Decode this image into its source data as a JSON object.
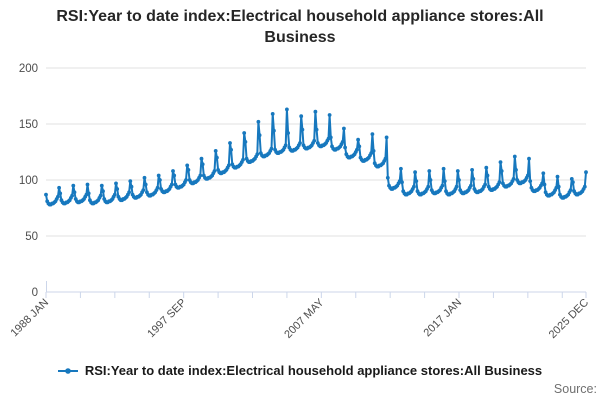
{
  "title": "RSI:Year to date index:Electrical household appliance stores:All Business",
  "legend": {
    "label": "RSI:Year to date index:Electrical household appliance stores:All Business"
  },
  "source_label": "Source:",
  "colors": {
    "line": "#1778be",
    "grid": "#e2e2e2",
    "axis": "#ccd6ea",
    "tick_text": "#4d4d4d",
    "title_text": "#262626",
    "source_text": "#707070"
  },
  "chart_data": {
    "type": "line",
    "title": "RSI:Year to date index:Electrical household appliance stores:All Business",
    "x_unit": "month",
    "x_range": [
      "1988 JAN",
      "2025 DEC"
    ],
    "ylim": [
      0,
      200
    ],
    "yticks": [
      0,
      50,
      100,
      150,
      200
    ],
    "grid": true,
    "legend_position": "bottom",
    "marker": "circle",
    "x_tick_labels": [
      {
        "month": 0,
        "label": "1988 JAN"
      },
      {
        "month": 116,
        "label": "1997 SEP"
      },
      {
        "month": 232,
        "label": "2007 MAY"
      },
      {
        "month": 348,
        "label": "2017 JAN"
      },
      {
        "month": 455,
        "label": "2025 DEC"
      }
    ],
    "minor_tick_months": [
      0,
      29,
      58,
      87,
      116,
      145,
      174,
      203,
      232,
      261,
      290,
      319,
      348,
      377,
      406,
      435,
      455
    ],
    "total_months": 456,
    "series": [
      {
        "name": "RSI:Year to date index:Electrical household appliance stores:All Business",
        "color": "#1778be",
        "years": [
          {
            "year": 1988,
            "values": [
              87,
              81,
              79,
              78,
              78,
              79,
              79,
              80,
              81,
              83,
              85,
              93
            ]
          },
          {
            "year": 1989,
            "values": [
              88,
              82,
              80,
              79,
              79,
              80,
              80,
              81,
              82,
              84,
              86,
              95
            ]
          },
          {
            "year": 1990,
            "values": [
              89,
              83,
              81,
              80,
              80,
              81,
              81,
              82,
              83,
              85,
              87,
              96
            ]
          },
          {
            "year": 1991,
            "values": [
              88,
              82,
              80,
              79,
              79,
              80,
              80,
              81,
              82,
              84,
              86,
              95
            ]
          },
          {
            "year": 1992,
            "values": [
              90,
              83,
              81,
              80,
              80,
              81,
              81,
              82,
              83,
              85,
              87,
              97
            ]
          },
          {
            "year": 1993,
            "values": [
              92,
              85,
              83,
              82,
              82,
              83,
              83,
              84,
              85,
              87,
              89,
              99
            ]
          },
          {
            "year": 1994,
            "values": [
              94,
              87,
              85,
              84,
              84,
              85,
              85,
              86,
              87,
              89,
              91,
              102
            ]
          },
          {
            "year": 1995,
            "values": [
              96,
              89,
              87,
              86,
              86,
              87,
              87,
              88,
              89,
              91,
              93,
              104
            ]
          },
          {
            "year": 1996,
            "values": [
              100,
              92,
              90,
              89,
              89,
              90,
              90,
              91,
              92,
              94,
              96,
              108
            ]
          },
          {
            "year": 1997,
            "values": [
              104,
              96,
              94,
              93,
              93,
              94,
              94,
              95,
              96,
              98,
              100,
              113
            ]
          },
          {
            "year": 1998,
            "values": [
              109,
              100,
              98,
              97,
              97,
              98,
              98,
              99,
              100,
              102,
              104,
              119
            ]
          },
          {
            "year": 1999,
            "values": [
              114,
              104,
              102,
              101,
              101,
              102,
              102,
              103,
              104,
              106,
              108,
              126
            ]
          },
          {
            "year": 2000,
            "values": [
              120,
              109,
              107,
              106,
              106,
              107,
              107,
              108,
              109,
              111,
              113,
              133
            ]
          },
          {
            "year": 2001,
            "values": [
              127,
              114,
              112,
              111,
              111,
              112,
              112,
              113,
              114,
              116,
              118,
              142
            ]
          },
          {
            "year": 2002,
            "values": [
              134,
              119,
              117,
              116,
              116,
              117,
              117,
              118,
              119,
              121,
              123,
              152
            ]
          },
          {
            "year": 2003,
            "values": [
              140,
              124,
              122,
              121,
              121,
              122,
              122,
              123,
              124,
              126,
              128,
              159
            ]
          },
          {
            "year": 2004,
            "values": [
              144,
              127,
              125,
              124,
              124,
              125,
              125,
              126,
              127,
              129,
              131,
              163
            ]
          },
          {
            "year": 2005,
            "values": [
              142,
              129,
              127,
              126,
              126,
              127,
              127,
              128,
              129,
              131,
              133,
              157
            ]
          },
          {
            "year": 2006,
            "values": [
              145,
              131,
              129,
              128,
              128,
              129,
              129,
              130,
              131,
              133,
              135,
              161
            ]
          },
          {
            "year": 2007,
            "values": [
              145,
              133,
              131,
              130,
              130,
              131,
              131,
              132,
              133,
              135,
              137,
              158
            ]
          },
          {
            "year": 2008,
            "values": [
              138,
              130,
              128,
              127,
              127,
              128,
              128,
              129,
              130,
              132,
              134,
              146
            ]
          },
          {
            "year": 2009,
            "values": [
              129,
              123,
              121,
              120,
              120,
              121,
              121,
              122,
              123,
              125,
              127,
              136
            ]
          },
          {
            "year": 2010,
            "values": [
              130,
              120,
              118,
              117,
              117,
              118,
              118,
              119,
              120,
              122,
              124,
              141
            ]
          },
          {
            "year": 2011,
            "values": [
              126,
              115,
              113,
              112,
              112,
              113,
              113,
              114,
              115,
              117,
              119,
              138
            ]
          },
          {
            "year": 2012,
            "values": [
              102,
              95,
              93,
              92,
              92,
              93,
              93,
              94,
              95,
              97,
              99,
              110
            ]
          },
          {
            "year": 2013,
            "values": [
              98,
              90,
              88,
              87,
              87,
              88,
              88,
              89,
              90,
              92,
              94,
              107
            ]
          },
          {
            "year": 2014,
            "values": [
              99,
              90,
              88,
              87,
              87,
              88,
              88,
              89,
              90,
              92,
              94,
              108
            ]
          },
          {
            "year": 2015,
            "values": [
              100,
              91,
              89,
              88,
              88,
              89,
              89,
              90,
              91,
              93,
              95,
              110
            ]
          },
          {
            "year": 2016,
            "values": [
              99,
              90,
              88,
              87,
              87,
              88,
              88,
              89,
              90,
              92,
              94,
              108
            ]
          },
          {
            "year": 2017,
            "values": [
              100,
              91,
              89,
              88,
              88,
              89,
              89,
              90,
              91,
              93,
              95,
              109
            ]
          },
          {
            "year": 2018,
            "values": [
              101,
              92,
              90,
              89,
              89,
              90,
              90,
              91,
              92,
              94,
              96,
              111
            ]
          },
          {
            "year": 2019,
            "values": [
              104,
              94,
              92,
              91,
              91,
              92,
              92,
              93,
              94,
              96,
              98,
              116
            ]
          },
          {
            "year": 2020,
            "values": [
              108,
              97,
              95,
              94,
              94,
              95,
              95,
              96,
              97,
              99,
              101,
              121
            ]
          },
          {
            "year": 2021,
            "values": [
              109,
              100,
              98,
              97,
              97,
              98,
              98,
              99,
              100,
              102,
              104,
              119
            ]
          },
          {
            "year": 2022,
            "values": [
              99,
              93,
              91,
              90,
              90,
              91,
              91,
              92,
              93,
              95,
              97,
              106
            ]
          },
          {
            "year": 2023,
            "values": [
              96,
              89,
              87,
              86,
              86,
              87,
              87,
              88,
              89,
              91,
              93,
              103
            ]
          },
          {
            "year": 2024,
            "values": [
              94,
              87,
              85,
              84,
              84,
              85,
              85,
              86,
              87,
              89,
              91,
              101
            ]
          },
          {
            "year": 2025,
            "values": [
              98,
              90,
              88,
              87,
              87,
              88,
              88,
              89,
              90,
              92,
              94,
              107
            ]
          }
        ]
      }
    ]
  }
}
